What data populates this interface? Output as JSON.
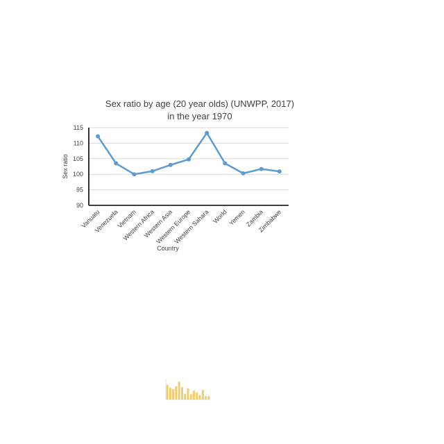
{
  "chart_data": {
    "type": "line",
    "title_lines": [
      "Sex ratio by age (20 year olds) (UNWPP, 2017)",
      "in the year 1970"
    ],
    "xlabel": "Country",
    "ylabel": "Sex ratio",
    "categories": [
      "Vanuatu",
      "Venezuela",
      "Vietnam",
      "Western Africa",
      "Western Asia",
      "Western Europe",
      "Western Sahara",
      "World",
      "Yemen",
      "Zambia",
      "Zimbabwe"
    ],
    "series": [
      {
        "values": [
          112.2,
          103.5,
          100.0,
          101.0,
          103.0,
          104.8,
          113.3,
          103.5,
          100.3,
          101.7,
          100.9
        ]
      }
    ],
    "ylim": [
      90,
      115
    ],
    "yticks": [
      90,
      95,
      100,
      105,
      110,
      115
    ],
    "grid": true,
    "legend": "none",
    "colors": {
      "series": "#5b9bd5",
      "axis": "#000000",
      "grid": "#d9d9d9",
      "text": "#404040"
    }
  },
  "thumbnail": {
    "type": "bar",
    "values": [
      5,
      4,
      3.5,
      4.5,
      6,
      4.2,
      2,
      3.8,
      1.8,
      3,
      2.4,
      1.5,
      3.2,
      1.2,
      1.2
    ],
    "ylim": [
      0,
      7
    ],
    "colors": {
      "bar": "#f2cc6b",
      "text": "#b0b0b0"
    }
  }
}
